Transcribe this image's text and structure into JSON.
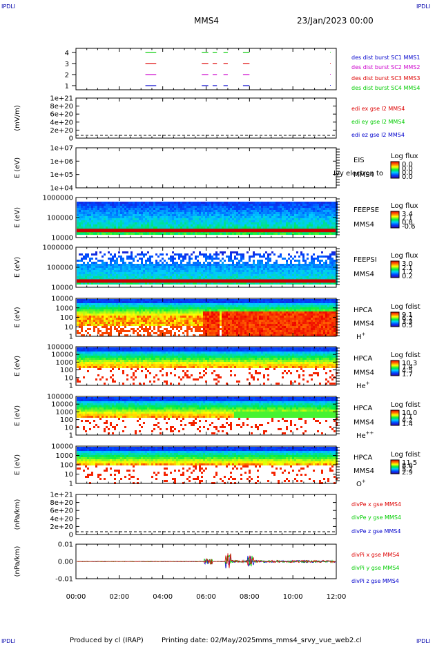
{
  "corner_labels": {
    "tl": "IPDLI",
    "tr": "IPDLI",
    "bl": "IPDLI",
    "br": "IPDLI"
  },
  "header": {
    "spacecraft": "MMS4",
    "date": "23/Jan/2023 00:00"
  },
  "footer": {
    "produced": "Produced by cl (IRAP)",
    "printing": "Printing date: 02/May/2025",
    "file": "mms_mms4_srvy_vue_web2.cl"
  },
  "colors": {
    "mms1": "#0000cc",
    "mms2": "#cc00cc",
    "mms3": "#dd0000",
    "mms4": "#00cc00",
    "x": "#dd0000",
    "y": "#00cc00",
    "z": "#0000cc"
  },
  "chart_data": {
    "type": "stacked-timeseries",
    "x_ticks": [
      "00:00",
      "02:00",
      "04:00",
      "06:00",
      "08:00",
      "10:00",
      "12:00"
    ],
    "x_range_hours": [
      0,
      12
    ],
    "panels": [
      {
        "id": "burst",
        "type": "event-bars",
        "yticks": [
          "4",
          "3",
          "2",
          "1"
        ],
        "ylim": [
          0.5,
          4.5
        ],
        "legend": [
          "des dist burst SC1 MMS1",
          "des dist burst SC2 MMS2",
          "des dist burst SC3 MMS3",
          "des dist burst SC4 MMS4"
        ],
        "intervals_hours": [
          [
            3.2,
            3.7
          ],
          [
            5.8,
            6.1
          ],
          [
            6.3,
            6.5
          ],
          [
            6.8,
            7.0
          ],
          [
            7.7,
            8.0
          ]
        ]
      },
      {
        "id": "edi",
        "type": "line",
        "ylabel": "(mV/m)",
        "yticks": [
          "1e+21",
          "8e+20",
          "6e+20",
          "4e+20",
          "2e+20",
          "0"
        ],
        "ylim": [
          0,
          1e+21
        ],
        "legend": [
          "edi ex gse l2 MMS4",
          "edi ey gse l2 MMS4",
          "edi ez gse l2 MMS4"
        ]
      },
      {
        "id": "eis",
        "type": "spectrogram",
        "ylabel": "E (eV)",
        "yticks": [
          "1e+07",
          "1e+06",
          "1e+05",
          "1e+04"
        ],
        "labels": [
          "EIS",
          "MMS4"
        ],
        "overlay": "Ivy electron to",
        "cbar_title": "Log flux",
        "cbar_ticks": [
          "0.0",
          "0.0",
          "0.0",
          "0.0"
        ]
      },
      {
        "id": "feepse",
        "type": "spectrogram",
        "ylabel": "E (eV)",
        "yticks": [
          "1000000",
          "100000",
          "10000"
        ],
        "labels": [
          "FEEPSE",
          "MMS4"
        ],
        "cbar_title": "Log flux",
        "cbar_ticks": [
          "3.4",
          "2.1",
          "0.8",
          "-0.6"
        ]
      },
      {
        "id": "feepsi",
        "type": "spectrogram",
        "ylabel": "E (eV)",
        "yticks": [
          "1000000",
          "100000",
          "10000"
        ],
        "labels": [
          "FEEPSI",
          "MMS4"
        ],
        "cbar_title": "Log flux",
        "cbar_ticks": [
          "3.0",
          "2.1",
          "1.2",
          "0.2"
        ]
      },
      {
        "id": "hpca_h",
        "type": "spectrogram",
        "ylabel": "E (eV)",
        "yticks": [
          "10000",
          "1000",
          "100",
          "10",
          "1"
        ],
        "labels": [
          "HPCA",
          "MMS4"
        ],
        "species": "H",
        "species_sup": "+",
        "cbar_title": "Log fdist",
        "cbar_ticks": [
          "9.1",
          "6.2",
          "3.3",
          "0.5"
        ]
      },
      {
        "id": "hpca_he",
        "type": "spectrogram",
        "ylabel": "E (eV)",
        "yticks": [
          "100000",
          "10000",
          "1000",
          "100",
          "10",
          "1"
        ],
        "labels": [
          "HPCA",
          "MMS4"
        ],
        "species": "He",
        "species_sup": "+",
        "cbar_title": "Log fdist",
        "cbar_ticks": [
          "10.3",
          "7.4",
          "4.5",
          "1.7"
        ]
      },
      {
        "id": "hpca_hepp",
        "type": "spectrogram",
        "ylabel": "E (eV)",
        "yticks": [
          "100000",
          "10000",
          "1000",
          "100",
          "10",
          "1"
        ],
        "labels": [
          "HPCA",
          "MMS4"
        ],
        "species": "He",
        "species_sup": "++",
        "cbar_title": "Log fdist",
        "cbar_ticks": [
          "10.0",
          "7.1",
          "4.2",
          "1.4"
        ]
      },
      {
        "id": "hpca_o",
        "type": "spectrogram",
        "ylabel": "E (eV)",
        "yticks": [
          "10000",
          "1000",
          "100",
          "10",
          "1"
        ],
        "labels": [
          "HPCA",
          "MMS4"
        ],
        "species": "O",
        "species_sup": "+",
        "cbar_title": "Log fdist",
        "cbar_ticks": [
          "11.5",
          "8.6",
          "5.7",
          "2.9"
        ]
      },
      {
        "id": "divpe",
        "type": "line",
        "ylabel": "(nPa/km)",
        "yticks": [
          "1e+21",
          "8e+20",
          "6e+20",
          "4e+20",
          "2e+20",
          "0"
        ],
        "ylim": [
          0,
          1e+21
        ],
        "legend": [
          "divPe x gse MMS4",
          "divPe y gse MMS4",
          "divPe z gse MMS4"
        ]
      },
      {
        "id": "divpi",
        "type": "line",
        "ylabel": "(nPa/km)",
        "yticks": [
          "0.01",
          "0.00",
          "-0.01"
        ],
        "ylim": [
          -0.015,
          0.015
        ],
        "legend": [
          "divPi x gse MMS4",
          "divPi y gse MMS4",
          "divPi z gse MMS4"
        ]
      }
    ]
  }
}
